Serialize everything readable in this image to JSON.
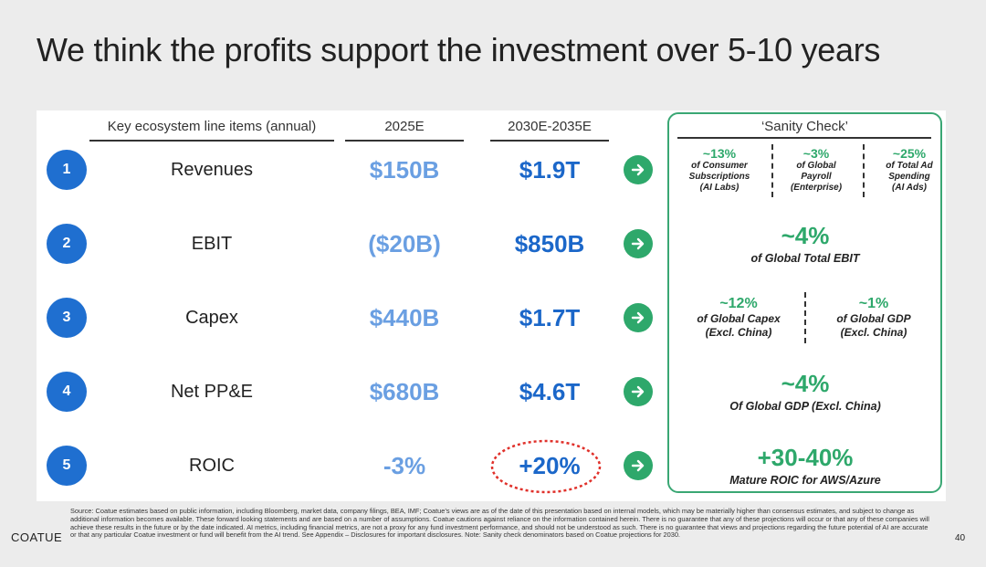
{
  "slide": {
    "title": "We think the profits support the investment over 5-10 years",
    "page_number": "40"
  },
  "table": {
    "headers": {
      "items": "Key ecosystem line items (annual)",
      "y2025": "2025E",
      "y2030": "2030E-2035E"
    },
    "rows": [
      {
        "num": "1",
        "label": "Revenues",
        "v2025": "$150B",
        "v2030": "$1.9T"
      },
      {
        "num": "2",
        "label": "EBIT",
        "v2025": "($20B)",
        "v2030": "$850B"
      },
      {
        "num": "3",
        "label": "Capex",
        "v2025": "$440B",
        "v2030": "$1.7T"
      },
      {
        "num": "4",
        "label": "Net PP&E",
        "v2025": "$680B",
        "v2030": "$4.6T"
      },
      {
        "num": "5",
        "label": "ROIC",
        "v2025": "-3%",
        "v2030": "+20%"
      }
    ]
  },
  "sanity": {
    "title": "‘Sanity Check’",
    "row1": [
      {
        "pct": "~13%",
        "sub": [
          "of Consumer",
          "Subscriptions",
          "(AI Labs)"
        ]
      },
      {
        "pct": "~3%",
        "sub": [
          "of Global",
          "Payroll",
          "(Enterprise)"
        ]
      },
      {
        "pct": "~25%",
        "sub": [
          "of Total Ad",
          "Spending",
          "(AI Ads)"
        ]
      }
    ],
    "row2": {
      "pct": "~4%",
      "sub": "of Global Total EBIT"
    },
    "row3": [
      {
        "pct": "~12%",
        "sub": [
          "of Global Capex",
          "(Excl. China)"
        ]
      },
      {
        "pct": "~1%",
        "sub": [
          "of Global GDP",
          "(Excl. China)"
        ]
      }
    ],
    "row4": {
      "pct": "~4%",
      "sub": "Of Global GDP (Excl. China)"
    },
    "row5": {
      "pct": "+30-40%",
      "sub": "Mature ROIC for AWS/Azure"
    }
  },
  "footer": {
    "text": "Source: Coatue estimates based on public information, including Bloomberg, market data, company filings, BEA, IMF; Coatue’s views are as of the date of this presentation based on internal models, which may be materially higher than consensus estimates, and subject to change as additional information becomes available. These forward looking statements and are based on a number of assumptions. Coatue cautions against reliance on the information contained herein. There is no guarantee that any of these projections will occur or that any of these companies will achieve these results in the future or by the date indicated. AI metrics, including financial metrics, are not a proxy for any fund investment performance, and should not be understood as such. There is no guarantee that views and projections regarding the future potential of AI are accurate or that any particular Coatue investment or fund will benefit from the AI trend. See Appendix – Disclosures for important disclosures. Note: Sanity check denominators based on Coatue projections for 2030.",
    "logo": "COATUE"
  },
  "colors": {
    "accent_blue": "#1f6fd0",
    "light_blue": "#6a9fe2",
    "green": "#2ea86b",
    "highlight_red": "#e0302a"
  },
  "icons": {
    "arrow": "arrow-right-circle-icon"
  }
}
